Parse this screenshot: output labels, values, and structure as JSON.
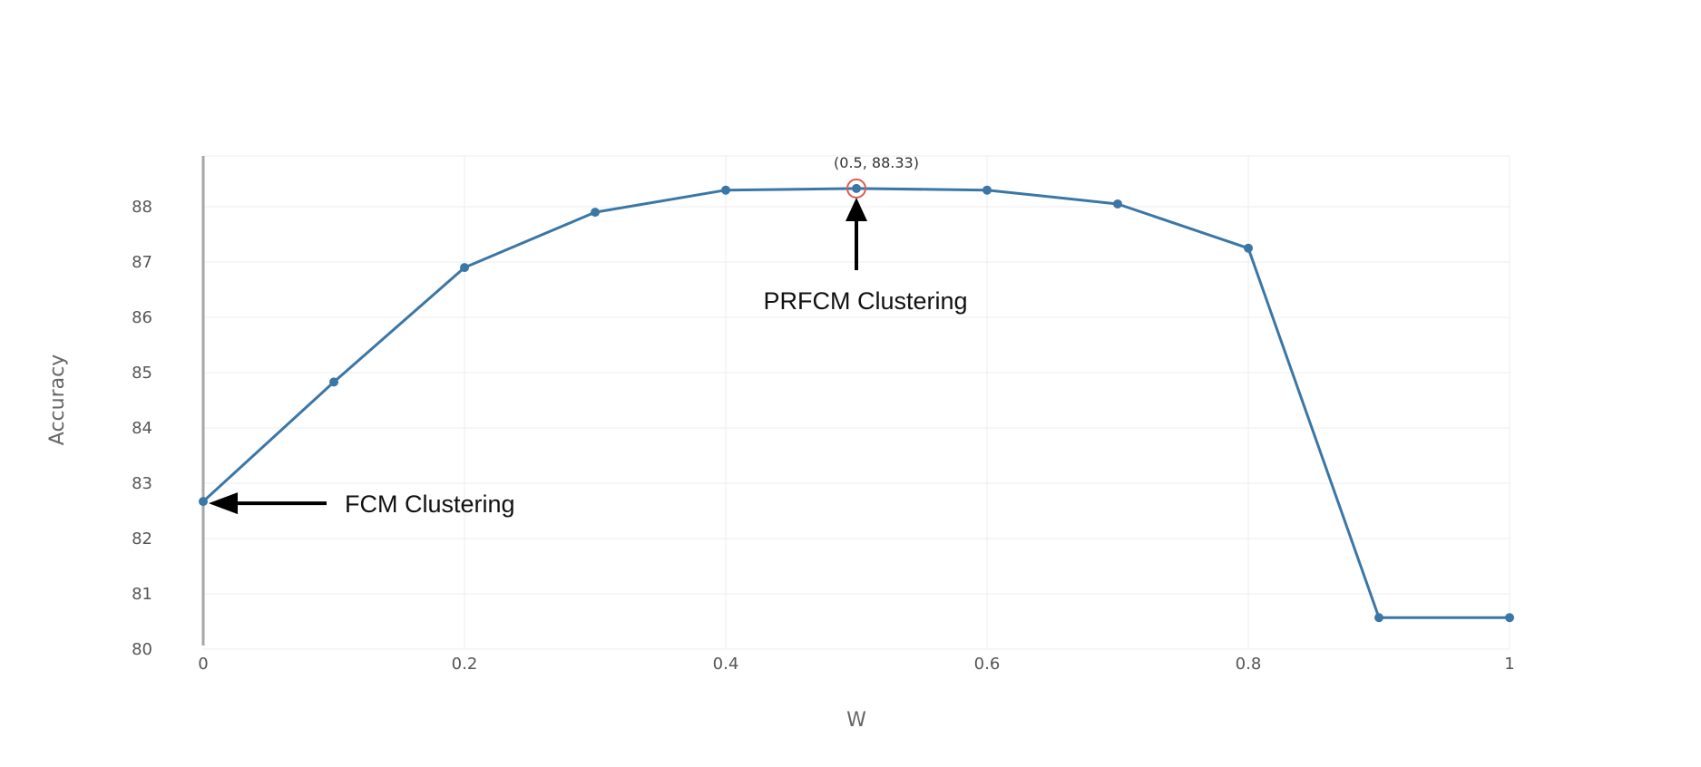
{
  "chart_data": {
    "type": "line",
    "xlabel": "W",
    "ylabel": "Accuracy",
    "xlim": [
      0,
      1
    ],
    "ylim": [
      80,
      89
    ],
    "x_ticks": [
      0,
      0.2,
      0.4,
      0.6,
      0.8,
      1
    ],
    "x_tick_labels": [
      "0",
      "0.2",
      "0.4",
      "0.6",
      "0.8",
      "1"
    ],
    "y_ticks": [
      80,
      81,
      82,
      83,
      84,
      85,
      86,
      87,
      88
    ],
    "y_tick_labels": [
      "80",
      "81",
      "82",
      "83",
      "84",
      "85",
      "86",
      "87",
      "88"
    ],
    "grid": true,
    "series": [
      {
        "x": [
          0,
          0.1,
          0.2,
          0.3,
          0.4,
          0.5,
          0.6,
          0.7,
          0.8,
          0.9,
          1.0
        ],
        "y": [
          82.67,
          84.83,
          86.9,
          87.9,
          88.3,
          88.33,
          88.3,
          88.05,
          87.25,
          80.57,
          80.57
        ]
      }
    ],
    "hover_label": "(0.5, 88.33)",
    "annotations": [
      {
        "text": "PRFCM Clustering",
        "x": 0.5,
        "y": 88.33
      },
      {
        "text": "FCM Clustering",
        "x": 0,
        "y": 82.67
      }
    ],
    "colors": {
      "series": "#3a77a6",
      "hover_ring": "#e05a4f",
      "grid": "#eeeeee",
      "axis": "#a6a6a6"
    }
  }
}
